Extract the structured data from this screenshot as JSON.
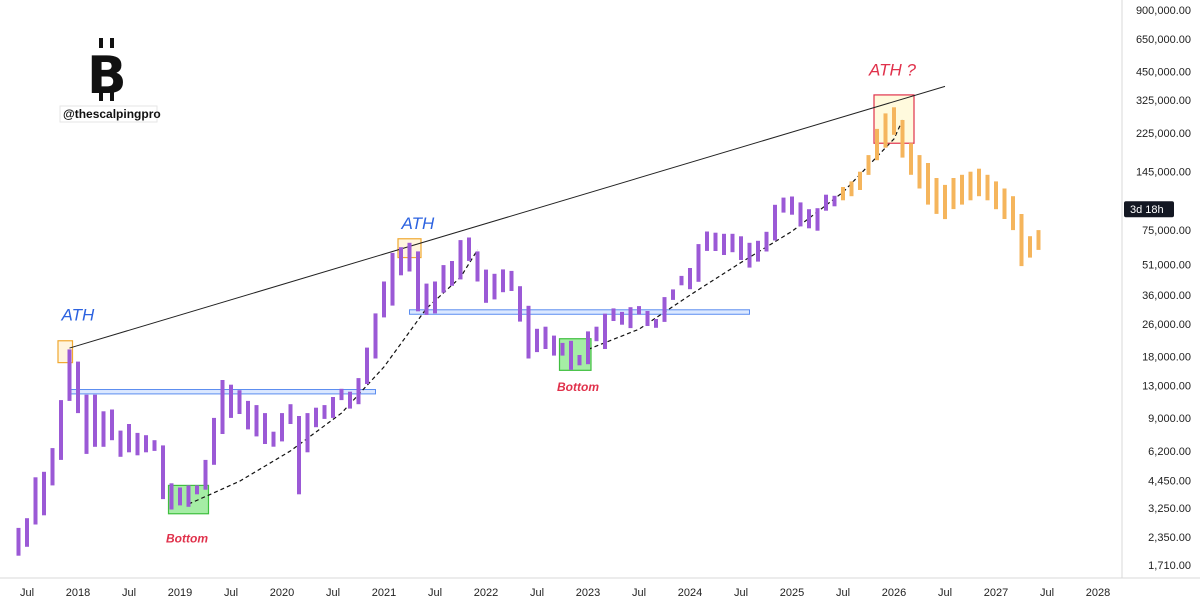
{
  "brand": {
    "logo": "bitcoin-logo",
    "handle": "@thescalpingpro"
  },
  "chart_data": {
    "type": "bar",
    "title": "",
    "y_scale": "log",
    "y_ticks": [
      "900,000.00",
      "650,000.00",
      "450,000.00",
      "325,000.00",
      "225,000.00",
      "145,000.00",
      "75,000.00",
      "51,000.00",
      "36,000.00",
      "26,000.00",
      "18,000.00",
      "13,000.00",
      "9,000.00",
      "6,200.00",
      "4,450.00",
      "3,250.00",
      "2,350.00",
      "1,710.00"
    ],
    "y_tick_values": [
      900000,
      650000,
      450000,
      325000,
      225000,
      145000,
      75000,
      51000,
      36000,
      26000,
      18000,
      13000,
      9000,
      6200,
      4450,
      3250,
      2350,
      1710
    ],
    "x_ticks": [
      "Jul",
      "2018",
      "Jul",
      "2019",
      "Jul",
      "2020",
      "Jul",
      "2021",
      "Jul",
      "2022",
      "Jul",
      "2023",
      "Jul",
      "2024",
      "Jul",
      "2025",
      "Jul",
      "2026",
      "Jul",
      "2027",
      "Jul",
      "2028"
    ],
    "x_tick_values": [
      "2017-07",
      "2018-01",
      "2018-07",
      "2019-01",
      "2019-07",
      "2020-01",
      "2020-07",
      "2021-01",
      "2021-07",
      "2022-01",
      "2022-07",
      "2023-01",
      "2023-07",
      "2024-01",
      "2024-07",
      "2025-01",
      "2025-07",
      "2026-01",
      "2026-07",
      "2027-01",
      "2027-07",
      "2028-01"
    ],
    "countdown_badge": "3d 18h",
    "countdown_value": 95000,
    "history_color": "#9b59d6",
    "projection_color": "#f5b55c",
    "history": [
      [
        "2017-06",
        1900,
        2600
      ],
      [
        "2017-07",
        2100,
        2900
      ],
      [
        "2017-08",
        2700,
        4600
      ],
      [
        "2017-09",
        3000,
        4900
      ],
      [
        "2017-10",
        4200,
        6400
      ],
      [
        "2017-11",
        5600,
        11000
      ],
      [
        "2017-12",
        10900,
        19500
      ],
      [
        "2018-01",
        9500,
        17000
      ],
      [
        "2018-02",
        6000,
        11700
      ],
      [
        "2018-03",
        6500,
        11700
      ],
      [
        "2018-04",
        6500,
        9700
      ],
      [
        "2018-05",
        7000,
        9900
      ],
      [
        "2018-06",
        5800,
        7800
      ],
      [
        "2018-07",
        6100,
        8400
      ],
      [
        "2018-08",
        5900,
        7600
      ],
      [
        "2018-09",
        6100,
        7400
      ],
      [
        "2018-10",
        6200,
        7000
      ],
      [
        "2018-11",
        3600,
        6600
      ],
      [
        "2018-12",
        3200,
        4300
      ],
      [
        "2019-01",
        3350,
        4100
      ],
      [
        "2019-02",
        3300,
        4200
      ],
      [
        "2019-03",
        3800,
        4200
      ],
      [
        "2019-04",
        4000,
        5600
      ],
      [
        "2019-05",
        5300,
        9000
      ],
      [
        "2019-06",
        7500,
        13800
      ],
      [
        "2019-07",
        9000,
        13100
      ],
      [
        "2019-08",
        9400,
        12300
      ],
      [
        "2019-09",
        7900,
        10900
      ],
      [
        "2019-10",
        7300,
        10400
      ],
      [
        "2019-11",
        6700,
        9500
      ],
      [
        "2019-12",
        6500,
        7700
      ],
      [
        "2020-01",
        6900,
        9500
      ],
      [
        "2020-02",
        8400,
        10500
      ],
      [
        "2020-03",
        3800,
        9200
      ],
      [
        "2020-04",
        6100,
        9500
      ],
      [
        "2020-05",
        8100,
        10100
      ],
      [
        "2020-06",
        8900,
        10400
      ],
      [
        "2020-07",
        9000,
        11400
      ],
      [
        "2020-08",
        11000,
        12500
      ],
      [
        "2020-09",
        10000,
        12100
      ],
      [
        "2020-10",
        10500,
        14100
      ],
      [
        "2020-11",
        13200,
        19900
      ],
      [
        "2020-12",
        17600,
        29300
      ],
      [
        "2021-01",
        28000,
        42000
      ],
      [
        "2021-02",
        32000,
        58000
      ],
      [
        "2021-03",
        45000,
        61800
      ],
      [
        "2021-04",
        47000,
        65000
      ],
      [
        "2021-05",
        30000,
        59000
      ],
      [
        "2021-06",
        28800,
        41000
      ],
      [
        "2021-07",
        29300,
        42000
      ],
      [
        "2021-08",
        37000,
        50500
      ],
      [
        "2021-09",
        40000,
        52900
      ],
      [
        "2021-10",
        43000,
        67000
      ],
      [
        "2021-11",
        53000,
        69000
      ],
      [
        "2021-12",
        42000,
        59000
      ],
      [
        "2022-01",
        33000,
        48000
      ],
      [
        "2022-02",
        34300,
        45800
      ],
      [
        "2022-03",
        37200,
        48100
      ],
      [
        "2022-04",
        37700,
        47300
      ],
      [
        "2022-05",
        26700,
        39800
      ],
      [
        "2022-06",
        17600,
        31900
      ],
      [
        "2022-07",
        18900,
        24600
      ],
      [
        "2022-08",
        19600,
        25200
      ],
      [
        "2022-09",
        18200,
        22800
      ],
      [
        "2022-10",
        18200,
        21000
      ],
      [
        "2022-11",
        15500,
        21500
      ],
      [
        "2022-12",
        16300,
        18300
      ],
      [
        "2023-01",
        16500,
        23900
      ],
      [
        "2023-02",
        21400,
        25200
      ],
      [
        "2023-03",
        19600,
        29200
      ],
      [
        "2023-04",
        26900,
        31000
      ],
      [
        "2023-05",
        25800,
        29800
      ],
      [
        "2023-06",
        24800,
        31400
      ],
      [
        "2023-07",
        28900,
        31800
      ],
      [
        "2023-08",
        25400,
        30100
      ],
      [
        "2023-09",
        24900,
        27500
      ],
      [
        "2023-10",
        26600,
        35200
      ],
      [
        "2023-11",
        34100,
        38400
      ],
      [
        "2023-12",
        40200,
        44700
      ],
      [
        "2024-01",
        38500,
        48900
      ],
      [
        "2024-02",
        41800,
        64000
      ],
      [
        "2024-03",
        59300,
        73800
      ],
      [
        "2024-04",
        59200,
        72800
      ],
      [
        "2024-05",
        56600,
        71900
      ],
      [
        "2024-06",
        58400,
        71900
      ],
      [
        "2024-07",
        53500,
        69900
      ],
      [
        "2024-08",
        49100,
        65000
      ],
      [
        "2024-09",
        52600,
        66500
      ],
      [
        "2024-10",
        58900,
        73600
      ],
      [
        "2024-11",
        66800,
        99800
      ],
      [
        "2024-12",
        91400,
        108300
      ],
      [
        "2025-01",
        89200,
        109600
      ],
      [
        "2025-02",
        78200,
        102500
      ],
      [
        "2025-03",
        76600,
        95000
      ],
      [
        "2025-04",
        74500,
        96000
      ],
      [
        "2025-05",
        93400,
        111900
      ],
      [
        "2025-06",
        98200,
        110500
      ]
    ],
    "projection": [
      [
        "2025-07",
        105000,
        122000
      ],
      [
        "2025-08",
        110000,
        130000
      ],
      [
        "2025-09",
        118000,
        145000
      ],
      [
        "2025-10",
        140000,
        175000
      ],
      [
        "2025-11",
        165000,
        235000
      ],
      [
        "2025-12",
        190000,
        280000
      ],
      [
        "2026-01",
        220000,
        300000
      ],
      [
        "2026-02",
        170000,
        260000
      ],
      [
        "2026-03",
        140000,
        200000
      ],
      [
        "2026-04",
        120000,
        175000
      ],
      [
        "2026-05",
        100000,
        160000
      ],
      [
        "2026-06",
        90000,
        135000
      ],
      [
        "2026-07",
        85000,
        125000
      ],
      [
        "2026-08",
        95000,
        135000
      ],
      [
        "2026-09",
        100000,
        140000
      ],
      [
        "2026-10",
        105000,
        145000
      ],
      [
        "2026-11",
        110000,
        150000
      ],
      [
        "2026-12",
        105000,
        140000
      ],
      [
        "2027-01",
        95000,
        130000
      ],
      [
        "2027-02",
        85000,
        120000
      ],
      [
        "2027-03",
        75000,
        110000
      ],
      [
        "2027-04",
        50000,
        90000
      ],
      [
        "2027-05",
        55000,
        70000
      ],
      [
        "2027-06",
        60000,
        75000
      ]
    ],
    "trendline": {
      "from": [
        "2017-12",
        19800
      ],
      "to": [
        "2026-07",
        380000
      ]
    },
    "support_zones": [
      {
        "from": "2017-12",
        "to": "2020-12",
        "low": 11800,
        "high": 12400
      },
      {
        "from": "2021-04",
        "to": "2024-08",
        "low": 29000,
        "high": 30500
      }
    ],
    "dashed_curves": [
      [
        [
          "2019-02",
          3400
        ],
        [
          "2019-08",
          4400
        ],
        [
          "2020-02",
          6200
        ],
        [
          "2020-08",
          9500
        ],
        [
          "2021-01",
          16000
        ],
        [
          "2021-06",
          31000
        ],
        [
          "2021-10",
          44000
        ],
        [
          "2021-12",
          60000
        ]
      ],
      [
        [
          "2023-01",
          19500
        ],
        [
          "2023-07",
          24500
        ],
        [
          "2024-01",
          36000
        ],
        [
          "2024-07",
          52000
        ],
        [
          "2025-01",
          74000
        ],
        [
          "2025-07",
          115000
        ],
        [
          "2026-01",
          210000
        ],
        [
          "2026-02",
          260000
        ]
      ]
    ],
    "annotations": [
      {
        "text": "ATH",
        "color": "#2d63e0",
        "at": [
          "2017-12",
          27000
        ]
      },
      {
        "text": "ATH",
        "color": "#2d63e0",
        "at": [
          "2021-04",
          76000
        ]
      },
      {
        "text": "ATH ?",
        "color": "#e0314b",
        "at": [
          "2025-11",
          430000
        ]
      },
      {
        "text": "Bottom",
        "color": "#e0314b",
        "at": [
          "2019-01",
          2200
        ]
      },
      {
        "text": "Bottom",
        "color": "#e0314b",
        "at": [
          "2022-11",
          12200
        ]
      }
    ],
    "boxes": [
      {
        "kind": "ath",
        "from": "2017-11",
        "to": "2017-12",
        "low": 16800,
        "high": 21500,
        "stroke": "#f0a830",
        "fill": "#fff4dc"
      },
      {
        "kind": "ath",
        "from": "2021-03",
        "to": "2021-05",
        "low": 55000,
        "high": 68000,
        "stroke": "#f0a830",
        "fill": "#fff4dc"
      },
      {
        "kind": "ath",
        "from": "2025-11",
        "to": "2026-03",
        "low": 200000,
        "high": 345000,
        "stroke": "#e0314b",
        "fill": "#fff9d9"
      },
      {
        "kind": "bottom",
        "from": "2018-12",
        "to": "2019-04",
        "low": 3050,
        "high": 4200,
        "stroke": "#3fbf3f",
        "fill": "#8fe88f"
      },
      {
        "kind": "bottom",
        "from": "2022-10",
        "to": "2023-01",
        "low": 15400,
        "high": 22000,
        "stroke": "#3fbf3f",
        "fill": "#8fe88f"
      }
    ]
  }
}
